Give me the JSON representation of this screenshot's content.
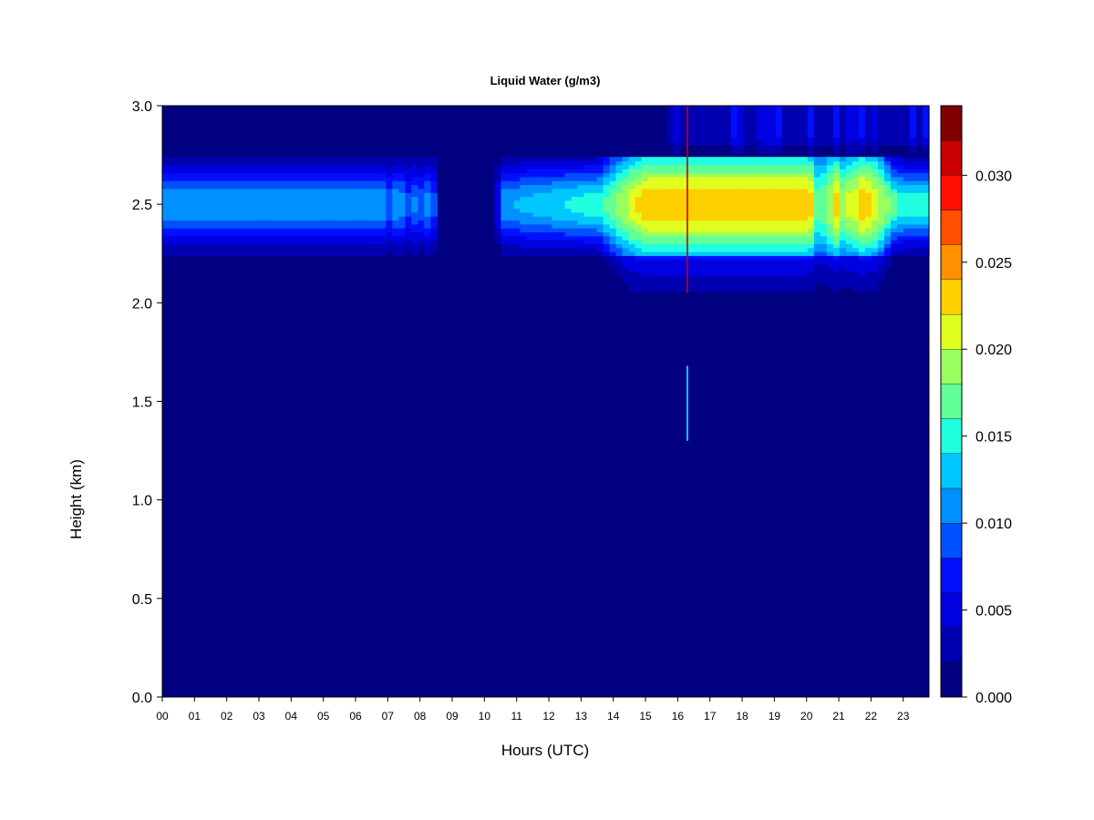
{
  "chart_data": {
    "type": "heatmap",
    "title": "Liquid Water (g/m3)",
    "xlabel": "Hours (UTC)",
    "ylabel": "Height (km)",
    "xlim": [
      0,
      23.8
    ],
    "ylim": [
      0.0,
      3.0
    ],
    "x_ticks": [
      "00",
      "01",
      "02",
      "03",
      "04",
      "05",
      "06",
      "07",
      "08",
      "09",
      "10",
      "11",
      "12",
      "13",
      "14",
      "15",
      "16",
      "17",
      "18",
      "19",
      "20",
      "21",
      "22",
      "23"
    ],
    "y_ticks": [
      "0.0",
      "0.5",
      "1.0",
      "1.5",
      "2.0",
      "2.5",
      "3.0"
    ],
    "colorbar": {
      "min": 0.0,
      "max": 0.032,
      "levels": 16,
      "ticks": [
        "0.000",
        "0.005",
        "0.010",
        "0.015",
        "0.020",
        "0.025",
        "0.030"
      ],
      "colors": [
        "#000080",
        "#0000b0",
        "#0000e0",
        "#0010ff",
        "#0050ff",
        "#0090ff",
        "#00c8ff",
        "#20ffe0",
        "#60ff98",
        "#98ff60",
        "#e0ff20",
        "#ffd000",
        "#ff9000",
        "#ff5000",
        "#ff1000",
        "#c80000",
        "#800000"
      ]
    },
    "features": [
      {
        "name": "upper cloud layer",
        "hours": [
          0,
          23.8
        ],
        "height_km": [
          2.25,
          2.72
        ],
        "peak_height_km": 2.5,
        "peak_value": 0.011,
        "peak_hours": [
          15.0,
          22.0
        ],
        "peak_value_afternoon": 0.025
      },
      {
        "name": "cloud thickening",
        "hours": [
          13.5,
          22.5
        ],
        "height_km": [
          2.05,
          2.72
        ]
      },
      {
        "name": "upper layer above 2.75 km",
        "hours": [
          15.6,
          23.8
        ],
        "height_km": [
          2.75,
          3.0
        ],
        "peak_value": 0.008
      },
      {
        "name": "spike",
        "hour": 16.3,
        "height_km": [
          1.3,
          3.0
        ],
        "peak_value": 0.03
      },
      {
        "name": "low patch",
        "hour": 16.3,
        "height_km": [
          1.3,
          1.68
        ],
        "peak_value": 0.012
      }
    ]
  }
}
